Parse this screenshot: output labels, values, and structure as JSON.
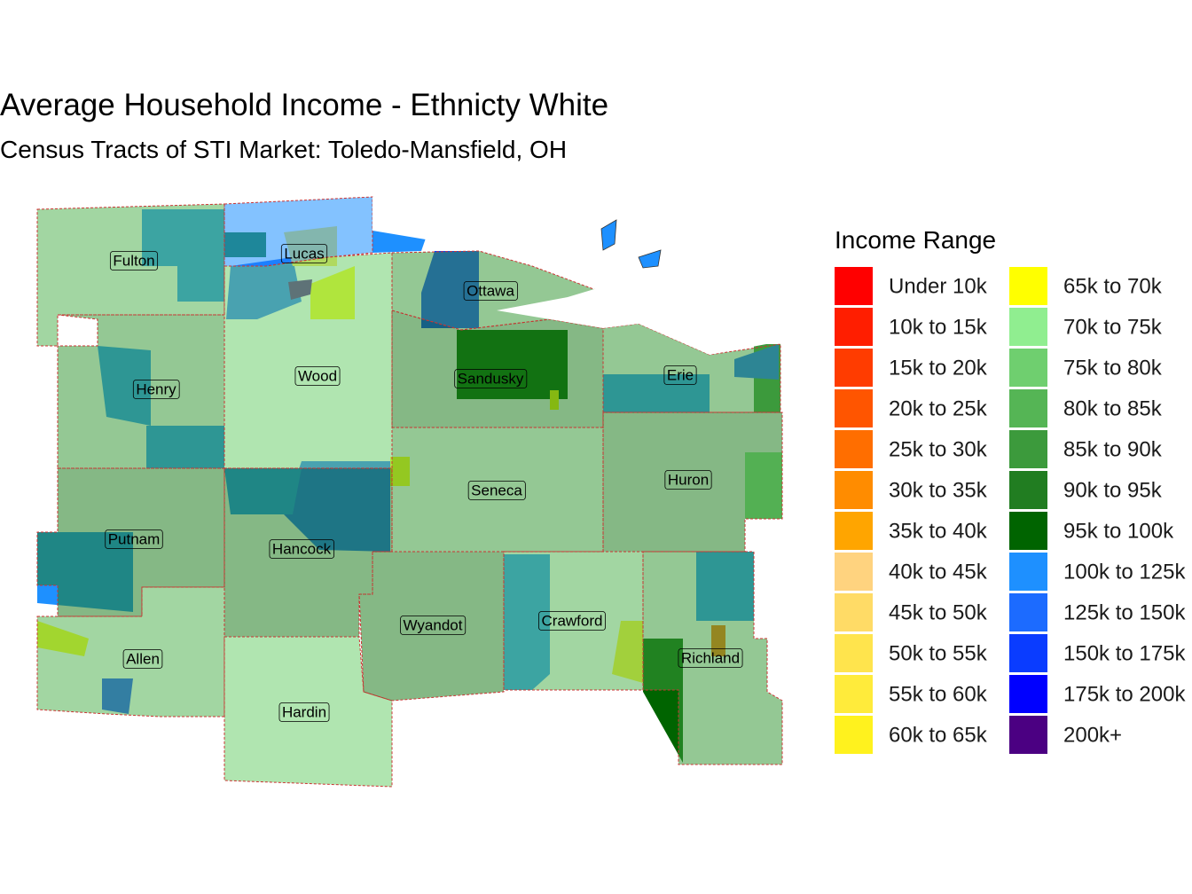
{
  "map": {
    "title": "Average Household Income - Ethnicty White",
    "subtitle": "Census Tracts of STI Market: Toledo-Mansfield, OH",
    "legend": {
      "title": "Income Range",
      "entries": [
        {
          "label": "Under 10k",
          "color": "#FF0000"
        },
        {
          "label": "10k to 15k",
          "color": "#FF1E00"
        },
        {
          "label": "15k to 20k",
          "color": "#FF3C00"
        },
        {
          "label": "20k to 25k",
          "color": "#FF5500"
        },
        {
          "label": "25k to 30k",
          "color": "#FF6E00"
        },
        {
          "label": "30k to 35k",
          "color": "#FF8C00"
        },
        {
          "label": "35k to 40k",
          "color": "#FFA500"
        },
        {
          "label": "40k to 45k",
          "color": "#FFD37F"
        },
        {
          "label": "45k to 50k",
          "color": "#FFDB66"
        },
        {
          "label": "50k to 55k",
          "color": "#FFE44D"
        },
        {
          "label": "55k to 60k",
          "color": "#FFEB3B"
        },
        {
          "label": "60k to 65k",
          "color": "#FFF21E"
        },
        {
          "label": "65k to 70k",
          "color": "#FFFF00"
        },
        {
          "label": "70k to 75k",
          "color": "#90EE90"
        },
        {
          "label": "75k to 80k",
          "color": "#6FCF6F"
        },
        {
          "label": "80k to 85k",
          "color": "#55B555"
        },
        {
          "label": "85k to 90k",
          "color": "#3C9A3C"
        },
        {
          "label": "90k to 95k",
          "color": "#217D21"
        },
        {
          "label": "95k to 100k",
          "color": "#006400"
        },
        {
          "label": "100k to 125k",
          "color": "#1E90FF"
        },
        {
          "label": "125k to 150k",
          "color": "#1C6BFF"
        },
        {
          "label": "150k to 175k",
          "color": "#0A3CFF"
        },
        {
          "label": "175k to 200k",
          "color": "#0000FF"
        },
        {
          "label": "200k+",
          "color": "#4B0082"
        }
      ]
    },
    "counties": [
      {
        "name": "Fulton",
        "color": "#55B555"
      },
      {
        "name": "Lucas",
        "color": "#1E90FF"
      },
      {
        "name": "Wood",
        "color": "#6FCF6F"
      },
      {
        "name": "Ottawa",
        "color": "#3C9A3C"
      },
      {
        "name": "Sandusky",
        "color": "#217D21"
      },
      {
        "name": "Erie",
        "color": "#3C9A3C"
      },
      {
        "name": "Henry",
        "color": "#3C9A3C"
      },
      {
        "name": "Huron",
        "color": "#217D21"
      },
      {
        "name": "Seneca",
        "color": "#3C9A3C"
      },
      {
        "name": "Putnam",
        "color": "#217D21"
      },
      {
        "name": "Hancock",
        "color": "#217D21"
      },
      {
        "name": "Allen",
        "color": "#55B555"
      },
      {
        "name": "Hardin",
        "color": "#6FCF6F"
      },
      {
        "name": "Wyandot",
        "color": "#217D21"
      },
      {
        "name": "Crawford",
        "color": "#55B555"
      },
      {
        "name": "Richland",
        "color": "#3C9A3C"
      }
    ]
  }
}
